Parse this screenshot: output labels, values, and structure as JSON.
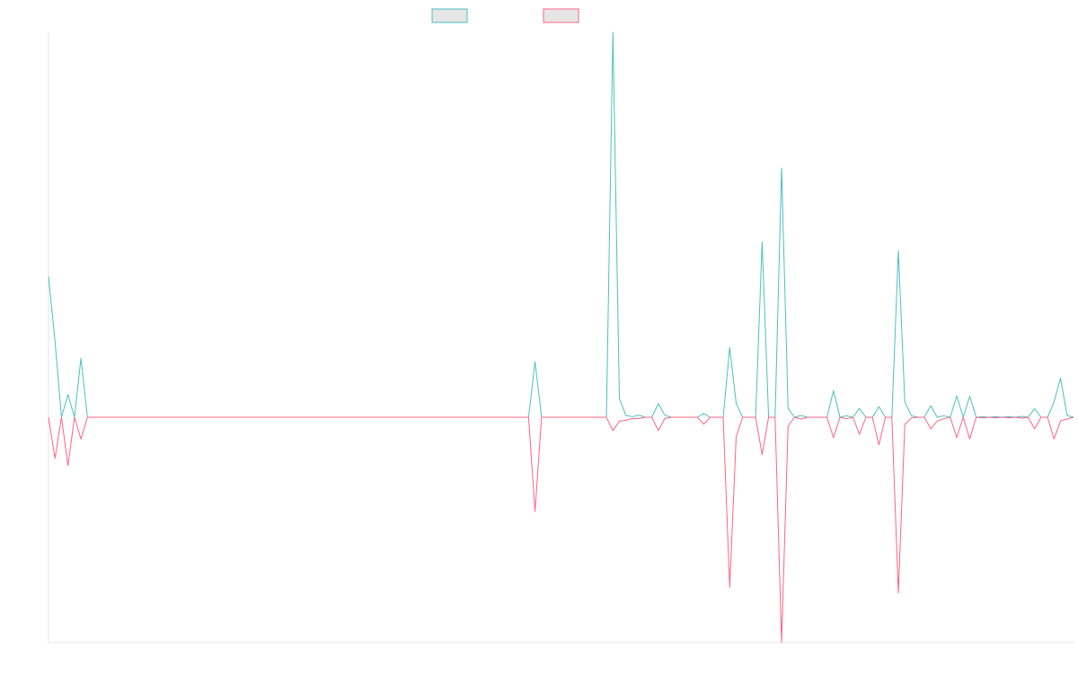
{
  "colors": {
    "series1": "#4bc0c0",
    "series2": "#ff6384",
    "axis": "#e5e5e5",
    "legend_fill": "#e6e6e6",
    "background": "#ffffff"
  },
  "chart_data": {
    "type": "line",
    "title": "",
    "xlabel": "",
    "ylabel": "",
    "x_labels_visible": false,
    "y_labels_visible": false,
    "grid": false,
    "legend": {
      "placement": "top-center",
      "entries": [
        {
          "label": "",
          "color": "#4bc0c0"
        },
        {
          "label": "",
          "color": "#ff6384"
        }
      ]
    },
    "ylim": [
      -100,
      100
    ],
    "x_count": 159,
    "series": [
      {
        "color": "#4bc0c0",
        "points": [
          [
            0,
            46.4
          ],
          [
            1,
            25.1
          ],
          [
            2,
            0
          ],
          [
            3,
            7.5
          ],
          [
            4,
            0
          ],
          [
            5,
            19.4
          ],
          [
            6,
            0
          ],
          [
            75,
            18.3
          ],
          [
            76,
            0
          ],
          [
            86,
            0
          ],
          [
            87,
            126.8
          ],
          [
            88,
            6.2
          ],
          [
            89,
            0.6
          ],
          [
            90,
            0.2
          ],
          [
            91,
            0.7
          ],
          [
            92,
            0
          ],
          [
            93,
            0
          ],
          [
            94,
            4.5
          ],
          [
            95,
            0.7
          ],
          [
            96,
            0
          ],
          [
            100,
            0
          ],
          [
            101,
            1.2
          ],
          [
            102,
            0
          ],
          [
            104,
            0
          ],
          [
            105,
            23.0
          ],
          [
            106,
            4.6
          ],
          [
            107,
            0
          ],
          [
            109,
            0
          ],
          [
            110,
            57.7
          ],
          [
            111,
            0
          ],
          [
            112,
            0
          ],
          [
            113,
            82.1
          ],
          [
            114,
            2.9
          ],
          [
            115,
            0
          ],
          [
            116,
            0.6
          ],
          [
            117,
            0
          ],
          [
            120,
            0
          ],
          [
            121,
            8.8
          ],
          [
            122,
            0
          ],
          [
            123,
            0.5
          ],
          [
            124,
            0
          ],
          [
            125,
            2.9
          ],
          [
            126,
            0
          ],
          [
            127,
            0
          ],
          [
            128,
            3.5
          ],
          [
            129,
            0
          ],
          [
            130,
            0
          ],
          [
            131,
            54.9
          ],
          [
            132,
            5.0
          ],
          [
            133,
            0.5
          ],
          [
            134,
            0
          ],
          [
            135,
            0
          ],
          [
            136,
            3.8
          ],
          [
            137,
            0
          ],
          [
            138,
            0.5
          ],
          [
            139,
            0
          ],
          [
            140,
            7.0
          ],
          [
            141,
            0
          ],
          [
            142,
            6.9
          ],
          [
            143,
            0
          ],
          [
            144,
            0.2
          ],
          [
            145,
            0
          ],
          [
            146,
            0.2
          ],
          [
            147,
            0
          ],
          [
            148,
            0.2
          ],
          [
            149,
            0
          ],
          [
            150,
            0.3
          ],
          [
            151,
            0
          ],
          [
            152,
            2.8
          ],
          [
            153,
            0
          ],
          [
            154,
            0
          ],
          [
            155,
            5.1
          ],
          [
            156,
            12.9
          ],
          [
            157,
            0.6
          ],
          [
            158,
            0
          ]
        ]
      },
      {
        "color": "#ff6384",
        "points": [
          [
            0,
            0
          ],
          [
            1,
            -13.5
          ],
          [
            2,
            0
          ],
          [
            3,
            -15.9
          ],
          [
            4,
            0
          ],
          [
            5,
            -7.2
          ],
          [
            6,
            0
          ],
          [
            75,
            -31.0
          ],
          [
            76,
            0
          ],
          [
            86,
            0
          ],
          [
            87,
            -4.4
          ],
          [
            88,
            -1.3
          ],
          [
            89,
            -1.0
          ],
          [
            90,
            -0.4
          ],
          [
            91,
            -0.4
          ],
          [
            92,
            0
          ],
          [
            93,
            0
          ],
          [
            94,
            -4.4
          ],
          [
            95,
            -0.4
          ],
          [
            96,
            0
          ],
          [
            100,
            0
          ],
          [
            101,
            -2.3
          ],
          [
            102,
            0
          ],
          [
            104,
            0
          ],
          [
            105,
            -55.9
          ],
          [
            106,
            -6.4
          ],
          [
            107,
            0
          ],
          [
            109,
            0
          ],
          [
            110,
            -12.3
          ],
          [
            111,
            0
          ],
          [
            112,
            0
          ],
          [
            113,
            -74.0
          ],
          [
            114,
            -2.9
          ],
          [
            115,
            0
          ],
          [
            116,
            -0.6
          ],
          [
            117,
            0
          ],
          [
            120,
            0
          ],
          [
            121,
            -6.7
          ],
          [
            122,
            0
          ],
          [
            123,
            -0.5
          ],
          [
            124,
            0
          ],
          [
            125,
            -5.6
          ],
          [
            126,
            0
          ],
          [
            127,
            0
          ],
          [
            128,
            -9.1
          ],
          [
            129,
            0
          ],
          [
            130,
            0
          ],
          [
            131,
            -57.7
          ],
          [
            132,
            -2.4
          ],
          [
            133,
            -0.2
          ],
          [
            134,
            0
          ],
          [
            135,
            0
          ],
          [
            136,
            -3.8
          ],
          [
            137,
            -1.2
          ],
          [
            138,
            -0.5
          ],
          [
            139,
            0
          ],
          [
            140,
            -6.7
          ],
          [
            141,
            0
          ],
          [
            142,
            -7.1
          ],
          [
            143,
            0
          ],
          [
            144,
            -0.2
          ],
          [
            145,
            0
          ],
          [
            146,
            -0.2
          ],
          [
            147,
            0
          ],
          [
            148,
            -0.2
          ],
          [
            149,
            0
          ],
          [
            150,
            -0.3
          ],
          [
            151,
            0
          ],
          [
            152,
            -3.8
          ],
          [
            153,
            0
          ],
          [
            154,
            0
          ],
          [
            155,
            -7.1
          ],
          [
            156,
            -1.2
          ],
          [
            157,
            -0.6
          ],
          [
            158,
            0
          ]
        ]
      }
    ]
  }
}
